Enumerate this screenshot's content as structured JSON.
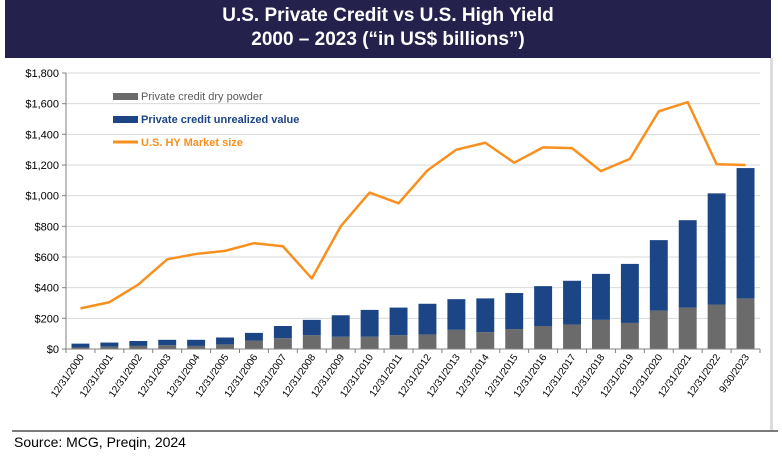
{
  "header": {
    "title_line1": "U.S. Private Credit vs U.S. High Yield",
    "title_line2": "2000 – 2023 (“in US$ billions”)"
  },
  "footer": {
    "source": "Source: MCG, Preqin, 2024"
  },
  "colors": {
    "header_bg": "#24214d",
    "dry_powder": "#6b6b6b",
    "unrealized": "#1b4584",
    "hy_market": "#f7901e",
    "legend_dry_text": "#5a5a5a",
    "legend_unrealized_text": "#1b4584",
    "legend_hy_text": "#f7901e"
  },
  "chart_data": {
    "type": "bar",
    "stacked": true,
    "title": "U.S. Private Credit vs U.S. High Yield 2000 – 2023 (“in US$ billions”)",
    "xlabel": "",
    "ylabel": "",
    "ylim": [
      0,
      1800
    ],
    "yticks": [
      0,
      200,
      400,
      600,
      800,
      1000,
      1200,
      1400,
      1600,
      1800
    ],
    "ytick_labels": [
      "$0",
      "$200",
      "$400",
      "$600",
      "$800",
      "$1,000",
      "$1,200",
      "$1,400",
      "$1,600",
      "$1,800"
    ],
    "grid": true,
    "legend_position": "top-left",
    "categories": [
      "12/31/2000",
      "12/31/2001",
      "12/31/2002",
      "12/31/2003",
      "12/31/2004",
      "12/31/2005",
      "12/31/2006",
      "12/31/2007",
      "12/31/2008",
      "12/31/2009",
      "12/31/2010",
      "12/31/2011",
      "12/31/2012",
      "12/31/2013",
      "12/31/2014",
      "12/31/2015",
      "12/31/2016",
      "12/31/2017",
      "12/31/2018",
      "12/31/2019",
      "12/31/2020",
      "12/31/2021",
      "12/31/2022",
      "9/30/2023"
    ],
    "series": [
      {
        "name": "Private credit dry powder",
        "type": "bar",
        "values": [
          10,
          15,
          20,
          25,
          20,
          30,
          55,
          70,
          90,
          80,
          80,
          90,
          95,
          125,
          110,
          130,
          150,
          160,
          190,
          170,
          250,
          270,
          290,
          330
        ]
      },
      {
        "name": "Private credit unrealized value",
        "type": "bar",
        "values": [
          25,
          27,
          32,
          35,
          40,
          45,
          50,
          80,
          100,
          140,
          175,
          180,
          200,
          200,
          220,
          235,
          260,
          285,
          300,
          385,
          460,
          570,
          725,
          850
        ]
      },
      {
        "name": "U.S. HY Market size",
        "type": "line",
        "values": [
          265,
          305,
          420,
          585,
          620,
          640,
          690,
          670,
          460,
          800,
          1020,
          950,
          1165,
          1300,
          1345,
          1215,
          1315,
          1310,
          1160,
          1240,
          1550,
          1610,
          1205,
          1200
        ]
      }
    ]
  }
}
